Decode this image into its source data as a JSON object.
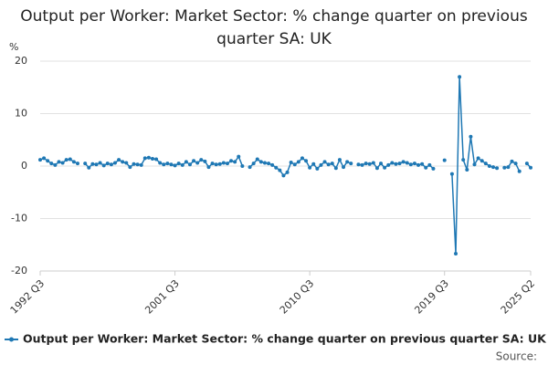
{
  "chart_data": {
    "type": "line",
    "title": "Output per Worker: Market Sector: % change quarter on previous quarter SA: UK",
    "y_label": "%",
    "source_label": "Source:",
    "categories": [
      "1992 Q3",
      null,
      null,
      null,
      null,
      null,
      null,
      null,
      null,
      null,
      null,
      null,
      null,
      null,
      null,
      null,
      null,
      null,
      null,
      null,
      null,
      null,
      null,
      null,
      null,
      null,
      null,
      null,
      null,
      null,
      null,
      null,
      null,
      null,
      null,
      null,
      "2001 Q3",
      null,
      null,
      null,
      null,
      null,
      null,
      null,
      null,
      null,
      null,
      null,
      null,
      null,
      null,
      null,
      null,
      null,
      null,
      null,
      null,
      null,
      null,
      null,
      null,
      null,
      null,
      null,
      null,
      null,
      null,
      null,
      null,
      null,
      null,
      null,
      "2010 Q3",
      null,
      null,
      null,
      null,
      null,
      null,
      null,
      null,
      null,
      null,
      null,
      null,
      null,
      null,
      null,
      null,
      null,
      null,
      null,
      null,
      null,
      null,
      null,
      null,
      null,
      null,
      null,
      null,
      null,
      null,
      null,
      null,
      null,
      null,
      null,
      "2019 Q3",
      null,
      null,
      null,
      null,
      null,
      null,
      null,
      null,
      null,
      null,
      null,
      null,
      null,
      null,
      null,
      null,
      null,
      null,
      null,
      null,
      null,
      null,
      "2025 Q2"
    ],
    "series": [
      {
        "name": "Output per Worker: Market Sector: % change quarter on previous quarter SA: UK",
        "color": "#1f78b4",
        "values": [
          1.2,
          1.5,
          1.0,
          0.5,
          0.2,
          0.8,
          0.6,
          1.2,
          1.3,
          0.8,
          0.5,
          null,
          0.5,
          -0.3,
          0.4,
          0.3,
          0.6,
          0.1,
          0.5,
          0.3,
          0.6,
          1.2,
          0.8,
          0.6,
          -0.2,
          0.4,
          0.3,
          0.2,
          1.5,
          1.6,
          1.4,
          1.3,
          0.6,
          0.3,
          0.5,
          0.3,
          0.1,
          0.5,
          0.2,
          0.8,
          0.3,
          1.0,
          0.6,
          1.2,
          0.9,
          -0.2,
          0.5,
          0.3,
          0.4,
          0.6,
          0.5,
          1.0,
          0.8,
          1.8,
          0.0,
          null,
          -0.2,
          0.5,
          1.3,
          0.8,
          0.6,
          0.5,
          0.2,
          -0.3,
          -0.8,
          -1.8,
          -1.2,
          0.7,
          0.3,
          0.8,
          1.5,
          1.0,
          -0.3,
          0.4,
          -0.5,
          0.2,
          0.8,
          0.3,
          0.5,
          -0.4,
          1.2,
          -0.2,
          0.8,
          0.5,
          null,
          0.3,
          0.2,
          0.5,
          0.4,
          0.6,
          -0.4,
          0.5,
          -0.3,
          0.2,
          0.6,
          0.4,
          0.5,
          0.8,
          0.6,
          0.3,
          0.5,
          0.2,
          0.4,
          -0.3,
          0.2,
          -0.5,
          null,
          null,
          1.1,
          null,
          -1.5,
          -16.7,
          17.0,
          1.2,
          -0.7,
          5.6,
          0.3,
          1.5,
          1.0,
          0.5,
          0.0,
          -0.2,
          -0.4,
          null,
          -0.3,
          -0.2,
          0.9,
          0.5,
          -1.0,
          null,
          0.5,
          -0.3
        ]
      }
    ],
    "ylim": [
      -20,
      20
    ],
    "yticks": [
      -20,
      -10,
      0,
      10,
      20
    ],
    "grid": true,
    "legend": "bottom"
  }
}
